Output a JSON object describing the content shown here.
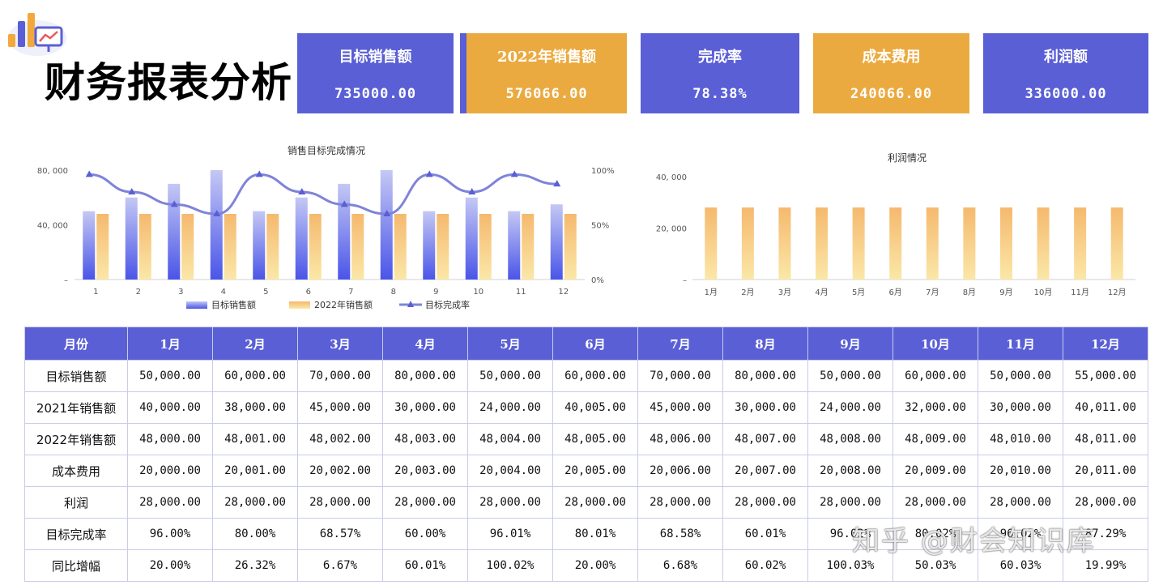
{
  "header": {
    "title": "财务报表分析"
  },
  "kpis": [
    {
      "label": "目标销售额",
      "value": "735000.00",
      "color": "#5a5fd6"
    },
    {
      "label": "2022年销售额",
      "value": "576066.00",
      "color": "#ebaa3f"
    },
    {
      "label": "完成率",
      "value": "78.38%",
      "color": "#5a5fd6"
    },
    {
      "label": "成本费用",
      "value": "240066.00",
      "color": "#ebaa3f"
    },
    {
      "label": "利润额",
      "value": "336000.00",
      "color": "#5a5fd6"
    }
  ],
  "chart_data": [
    {
      "type": "bar",
      "title": "销售目标完成情况",
      "categories": [
        "1",
        "2",
        "3",
        "4",
        "5",
        "6",
        "7",
        "8",
        "9",
        "10",
        "11",
        "12"
      ],
      "series": [
        {
          "name": "目标销售额",
          "type": "bar",
          "values": [
            50000,
            60000,
            70000,
            80000,
            50000,
            60000,
            70000,
            80000,
            50000,
            60000,
            50000,
            55000
          ],
          "color": "#4a55e8"
        },
        {
          "name": "2022年销售额",
          "type": "bar",
          "values": [
            48000,
            48001,
            48002,
            48003,
            48004,
            48005,
            48006,
            48007,
            48008,
            48009,
            48010,
            48011
          ],
          "color": "#f5b96e"
        },
        {
          "name": "目标完成率",
          "type": "line",
          "axis": "right",
          "values": [
            96.0,
            80.0,
            68.57,
            60.0,
            96.01,
            80.01,
            68.58,
            60.01,
            96.02,
            80.01,
            96.02,
            87.29
          ],
          "color": "#7f84d8"
        }
      ],
      "yticks_left": [
        "–",
        "40, 000",
        "80, 000"
      ],
      "yticks_right": [
        "0%",
        "50%",
        "100%"
      ],
      "ylim": [
        0,
        80000
      ],
      "ylim_right": [
        0,
        100
      ],
      "legend": "bottom"
    },
    {
      "type": "bar",
      "title": "利润情况",
      "categories": [
        "1月",
        "2月",
        "3月",
        "4月",
        "5月",
        "6月",
        "7月",
        "8月",
        "9月",
        "10月",
        "11月",
        "12月"
      ],
      "series": [
        {
          "name": "利润",
          "values": [
            28000,
            28000,
            28000,
            28000,
            28000,
            28000,
            28000,
            28000,
            28000,
            28000,
            28000,
            28000
          ],
          "color": "#f5b96e"
        }
      ],
      "yticks_left": [
        "–",
        "20, 000",
        "40, 000"
      ],
      "ylim": [
        0,
        40000
      ]
    }
  ],
  "table": {
    "headers": [
      "月份",
      "1月",
      "2月",
      "3月",
      "4月",
      "5月",
      "6月",
      "7月",
      "8月",
      "9月",
      "10月",
      "11月",
      "12月"
    ],
    "rows": [
      [
        "目标销售额",
        "50,000.00",
        "60,000.00",
        "70,000.00",
        "80,000.00",
        "50,000.00",
        "60,000.00",
        "70,000.00",
        "80,000.00",
        "50,000.00",
        "60,000.00",
        "50,000.00",
        "55,000.00"
      ],
      [
        "2021年销售额",
        "40,000.00",
        "38,000.00",
        "45,000.00",
        "30,000.00",
        "24,000.00",
        "40,005.00",
        "45,000.00",
        "30,000.00",
        "24,000.00",
        "32,000.00",
        "30,000.00",
        "40,011.00"
      ],
      [
        "2022年销售额",
        "48,000.00",
        "48,001.00",
        "48,002.00",
        "48,003.00",
        "48,004.00",
        "48,005.00",
        "48,006.00",
        "48,007.00",
        "48,008.00",
        "48,009.00",
        "48,010.00",
        "48,011.00"
      ],
      [
        "成本费用",
        "20,000.00",
        "20,001.00",
        "20,002.00",
        "20,003.00",
        "20,004.00",
        "20,005.00",
        "20,006.00",
        "20,007.00",
        "20,008.00",
        "20,009.00",
        "20,010.00",
        "20,011.00"
      ],
      [
        "利润",
        "28,000.00",
        "28,000.00",
        "28,000.00",
        "28,000.00",
        "28,000.00",
        "28,000.00",
        "28,000.00",
        "28,000.00",
        "28,000.00",
        "28,000.00",
        "28,000.00",
        "28,000.00"
      ],
      [
        "目标完成率",
        "96.00%",
        "80.00%",
        "68.57%",
        "60.00%",
        "96.01%",
        "80.01%",
        "68.58%",
        "60.01%",
        "96.02%",
        "80.02%",
        "96.02%",
        "87.29%"
      ],
      [
        "同比增幅",
        "20.00%",
        "26.32%",
        "6.67%",
        "60.01%",
        "100.02%",
        "20.00%",
        "6.68%",
        "60.02%",
        "100.03%",
        "50.03%",
        "60.03%",
        "19.99%"
      ]
    ]
  },
  "watermark": "知乎 @财会知识库"
}
